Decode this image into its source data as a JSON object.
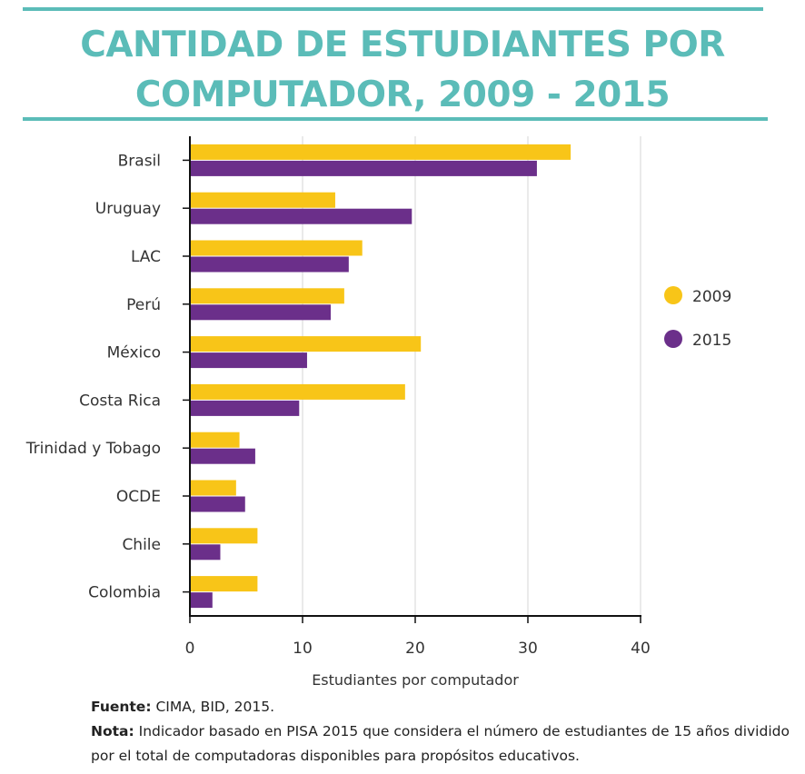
{
  "title": {
    "line1": "CANTIDAD DE ESTUDIANTES POR",
    "line2": "COMPUTADOR, 2009 -  2015"
  },
  "colors": {
    "accent": "#5bbcb8",
    "series2009": "#f8c518",
    "series2015": "#6b2f8a"
  },
  "chart_data": {
    "type": "bar",
    "orientation": "horizontal",
    "title": "CANTIDAD DE ESTUDIANTES POR COMPUTADOR, 2009 -  2015",
    "categories": [
      "Brasil",
      "Uruguay",
      "LAC",
      "Perú",
      "México",
      "Costa Rica",
      "Trinidad y Tobago",
      "OCDE",
      "Chile",
      "Colombia"
    ],
    "series": [
      {
        "name": "2009",
        "color": "#f8c518",
        "values": [
          33.8,
          12.9,
          15.3,
          13.7,
          20.5,
          19.1,
          4.4,
          4.1,
          6.0,
          6.0
        ]
      },
      {
        "name": "2015",
        "color": "#6b2f8a",
        "values": [
          30.8,
          19.7,
          14.1,
          12.5,
          10.4,
          9.7,
          5.8,
          4.9,
          2.7,
          2.0
        ]
      }
    ],
    "xlabel": "Estudiantes por computador",
    "ylabel": "",
    "xlim": [
      0,
      40
    ],
    "xticks": [
      0,
      10,
      20,
      30,
      40
    ],
    "grid": true,
    "legend": "right"
  },
  "footer": {
    "source_label": "Fuente:",
    "source_text": " CIMA, BID, 2015.",
    "note_label": "Nota:",
    "note_text": "  Indicador basado en PISA 2015 que considera el número de estudiantes de 15 años dividido por el total de computadoras disponibles para propósitos educativos."
  }
}
